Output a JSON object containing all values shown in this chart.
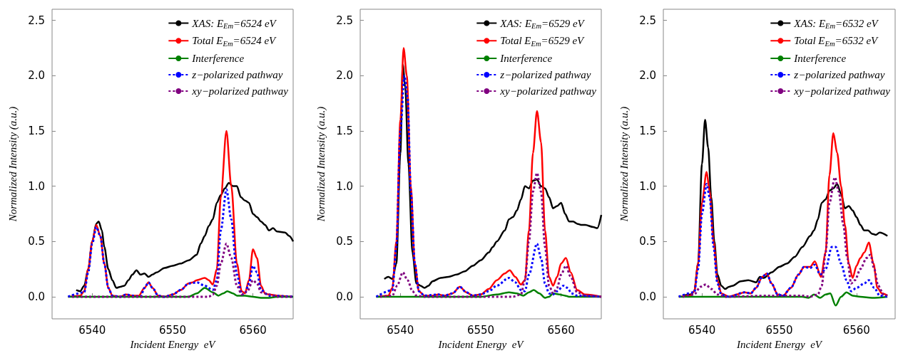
{
  "chart_data": [
    {
      "type": "line",
      "xlabel": "Incident Energy  eV",
      "ylabel": "Normalized Intensity (a.u.)",
      "xlim": [
        6535,
        6565
      ],
      "ylim": [
        -0.2,
        2.6
      ],
      "xticks": [
        6540,
        6550,
        6560
      ],
      "yticks": [
        {
          "value": 0,
          "label": "0.0"
        },
        0.5,
        {
          "value": 1,
          "label": "1.0"
        },
        1.5,
        {
          "value": 2,
          "label": "2.0"
        },
        2.5
      ],
      "legend": "top right",
      "series": [
        {
          "name": "XAS: E$_{Em}$=6524 eV",
          "color": "#000000",
          "line_style": "solid",
          "x": [
            6538,
            6538.5,
            6539,
            6539.5,
            6540,
            6540.5,
            6540.8,
            6541.2,
            6541.5,
            6542,
            6542.5,
            6543,
            6543.5,
            6544,
            6544.5,
            6545,
            6545.5,
            6546,
            6546.5,
            6547,
            6547.5,
            6548,
            6549,
            6550,
            6551,
            6552,
            6553,
            6553.5,
            6554,
            6554.5,
            6555,
            6555.5,
            6556,
            6556.5,
            6557,
            6557.5,
            6558,
            6558.5,
            6559,
            6559.5,
            6560,
            6560.5,
            6561,
            6561.5,
            6562,
            6562.5,
            6563,
            6564,
            6564.5,
            6565
          ],
          "values": [
            0.06,
            0.05,
            0.1,
            0.25,
            0.5,
            0.66,
            0.68,
            0.6,
            0.45,
            0.25,
            0.15,
            0.08,
            0.09,
            0.1,
            0.15,
            0.2,
            0.24,
            0.2,
            0.21,
            0.18,
            0.2,
            0.22,
            0.26,
            0.28,
            0.3,
            0.33,
            0.38,
            0.48,
            0.55,
            0.64,
            0.7,
            0.85,
            0.92,
            0.98,
            1.03,
            1.0,
            1.0,
            0.9,
            0.87,
            0.85,
            0.75,
            0.72,
            0.68,
            0.65,
            0.6,
            0.62,
            0.59,
            0.58,
            0.55,
            0.5
          ]
        },
        {
          "name": "Total E$_{Em}$=6524 eV",
          "color": "#ff0000",
          "line_style": "solid",
          "x": [
            6537,
            6538.5,
            6539,
            6539.5,
            6540,
            6540.5,
            6541,
            6541.5,
            6542,
            6542.5,
            6543.5,
            6544.2,
            6545,
            6545.8,
            6546.5,
            6547,
            6547.5,
            6548.2,
            6549,
            6550,
            6551,
            6552,
            6552.5,
            6553,
            6554,
            6554.5,
            6555,
            6555.5,
            6556,
            6556.7,
            6557.3,
            6558,
            6558.6,
            6559,
            6559.5,
            6560,
            6560.5,
            6561,
            6561.5,
            6562,
            6563,
            6565
          ],
          "values": [
            0,
            0.01,
            0.05,
            0.25,
            0.5,
            0.65,
            0.55,
            0.3,
            0.08,
            0.01,
            0,
            0.02,
            0.01,
            0.01,
            0.08,
            0.13,
            0.08,
            0.01,
            0,
            0.02,
            0.06,
            0.12,
            0.13,
            0.15,
            0.17,
            0.15,
            0.11,
            0.25,
            0.9,
            1.5,
            1.0,
            0.3,
            0.05,
            0.03,
            0.15,
            0.43,
            0.35,
            0.1,
            0.03,
            0.02,
            0.01,
            0
          ]
        },
        {
          "name": "Interference",
          "color": "#008000",
          "line_style": "solid",
          "x": [
            6537,
            6552,
            6553,
            6554,
            6555,
            6555.7,
            6556.3,
            6556.8,
            6557.5,
            6558,
            6559,
            6560,
            6561,
            6562,
            6563,
            6565
          ],
          "values": [
            0,
            0,
            0.03,
            0.08,
            0.04,
            0.01,
            0.03,
            0.05,
            0.03,
            0.01,
            0.01,
            0,
            -0.01,
            -0.01,
            0,
            0
          ]
        },
        {
          "name": "z−polarized pathway",
          "color": "#0000ff",
          "line_style": "dotted",
          "x": [
            6537,
            6539,
            6539.5,
            6540,
            6540.5,
            6541,
            6541.5,
            6542,
            6542.5,
            6543.5,
            6544.2,
            6545,
            6546,
            6546.5,
            6547,
            6547.5,
            6548.2,
            6549,
            6550,
            6551,
            6552,
            6553,
            6554,
            6555,
            6555.5,
            6556,
            6556.7,
            6557.3,
            6558,
            6558.6,
            6559,
            6559.5,
            6560,
            6560.5,
            6561,
            6562,
            6565
          ],
          "values": [
            0,
            0.04,
            0.22,
            0.48,
            0.63,
            0.55,
            0.3,
            0.08,
            0.01,
            0,
            0.02,
            0.01,
            0,
            0.08,
            0.13,
            0.08,
            0.01,
            0,
            0.02,
            0.06,
            0.12,
            0.13,
            0.1,
            0.06,
            0.15,
            0.6,
            0.97,
            0.7,
            0.2,
            0.02,
            0.03,
            0.12,
            0.28,
            0.22,
            0.06,
            0.01,
            0
          ]
        },
        {
          "name": "xy−polarized pathway",
          "color": "#800080",
          "line_style": "dotted",
          "x": [
            6537.5,
            6554.5,
            6555,
            6555.5,
            6556,
            6556.7,
            6557.3,
            6558,
            6558.6,
            6559.3,
            6560,
            6560.5,
            6561,
            6562,
            6563,
            6565
          ],
          "values": [
            0,
            0,
            0.02,
            0.1,
            0.3,
            0.48,
            0.35,
            0.1,
            0.02,
            0.05,
            0.15,
            0.12,
            0.04,
            0.02,
            0,
            0
          ]
        }
      ]
    },
    {
      "type": "line",
      "xlabel": "Incident Energy  eV",
      "ylabel": "Normalized Intensity (a.u.)",
      "xlim": [
        6535,
        6565
      ],
      "ylim": [
        -0.2,
        2.6
      ],
      "xticks": [
        6540,
        6550,
        6560
      ],
      "yticks": [
        {
          "value": 0,
          "label": "0.0"
        },
        0.5,
        {
          "value": 1,
          "label": "1.0"
        },
        1.5,
        {
          "value": 2,
          "label": "2.0"
        },
        2.5
      ],
      "legend": "top right",
      "series": [
        {
          "name": "XAS: E$_{Em}$=6529 eV",
          "color": "#000000",
          "line_style": "solid",
          "x": [
            6538,
            6538.5,
            6539,
            6539.5,
            6540,
            6540.3,
            6540.6,
            6541,
            6541.5,
            6542,
            6542.5,
            6543,
            6543.5,
            6544,
            6545,
            6546,
            6547,
            6548,
            6549,
            6550,
            6551,
            6551.5,
            6552,
            6553,
            6553.5,
            6554,
            6554.5,
            6555,
            6555.5,
            6556,
            6556.5,
            6557,
            6557.5,
            6558,
            6558.5,
            6559,
            6559.5,
            6560,
            6560.5,
            6561,
            6561.5,
            6562,
            6562.5,
            6563,
            6564,
            6564.5,
            6565
          ],
          "values": [
            0.16,
            0.18,
            0.16,
            0.3,
            1.3,
            2.1,
            1.9,
            1.2,
            0.4,
            0.12,
            0.1,
            0.08,
            0.1,
            0.14,
            0.17,
            0.18,
            0.2,
            0.23,
            0.28,
            0.33,
            0.4,
            0.45,
            0.5,
            0.6,
            0.7,
            0.72,
            0.78,
            0.88,
            1.0,
            0.98,
            1.05,
            1.06,
            1.0,
            0.98,
            0.9,
            0.8,
            0.82,
            0.85,
            0.75,
            0.68,
            0.68,
            0.66,
            0.65,
            0.65,
            0.63,
            0.62,
            0.74
          ]
        },
        {
          "name": "Total E$_{Em}$=6529 eV",
          "color": "#ff0000",
          "line_style": "solid",
          "x": [
            6537,
            6538.5,
            6539,
            6539.5,
            6540,
            6540.4,
            6540.8,
            6541.3,
            6541.8,
            6542.3,
            6543,
            6544,
            6544.7,
            6545.5,
            6546.5,
            6547.4,
            6548.2,
            6549,
            6550,
            6551,
            6552,
            6553,
            6553.6,
            6554.3,
            6555,
            6555.5,
            6556,
            6556.5,
            6557,
            6557.5,
            6558,
            6558.5,
            6559,
            6559.5,
            6560,
            6560.6,
            6561.2,
            6562,
            6563,
            6565
          ],
          "values": [
            0,
            0.01,
            0.08,
            0.5,
            1.6,
            2.25,
            2.0,
            1.0,
            0.3,
            0.05,
            0.01,
            0.01,
            0.02,
            0.01,
            0.03,
            0.09,
            0.04,
            0.01,
            0.02,
            0.07,
            0.15,
            0.21,
            0.24,
            0.18,
            0.11,
            0.15,
            0.6,
            1.3,
            1.68,
            1.4,
            0.6,
            0.18,
            0.1,
            0.18,
            0.3,
            0.35,
            0.22,
            0.06,
            0.02,
            0
          ]
        },
        {
          "name": "Interference",
          "color": "#008000",
          "line_style": "solid",
          "x": [
            6537,
            6550,
            6552,
            6553.5,
            6554.5,
            6555.3,
            6556,
            6556.6,
            6557.3,
            6558,
            6558.5,
            6559,
            6559.8,
            6560.5,
            6561,
            6565
          ],
          "values": [
            0,
            0,
            0.02,
            0.04,
            0.03,
            0.01,
            0.04,
            0.06,
            0.03,
            -0.01,
            0,
            0.03,
            0.02,
            0.01,
            0,
            0
          ]
        },
        {
          "name": "z−polarized pathway",
          "color": "#0000ff",
          "line_style": "dotted",
          "x": [
            6537,
            6539,
            6539.5,
            6540,
            6540.5,
            6540.9,
            6541.3,
            6541.8,
            6542.3,
            6543,
            6544.7,
            6545.5,
            6546.5,
            6547.4,
            6548.2,
            6549,
            6550,
            6551,
            6552,
            6553.5,
            6554.3,
            6555,
            6555.5,
            6556,
            6557,
            6557.5,
            6558,
            6558.5,
            6559,
            6559.5,
            6560.3,
            6560.8,
            6561.3,
            6562,
            6565
          ],
          "values": [
            0,
            0.06,
            0.45,
            1.5,
            2.0,
            1.8,
            0.95,
            0.3,
            0.05,
            0.01,
            0.02,
            0.01,
            0.03,
            0.09,
            0.04,
            0.01,
            0.02,
            0.05,
            0.1,
            0.17,
            0.13,
            0.06,
            0.05,
            0.2,
            0.48,
            0.35,
            0.12,
            0.03,
            0.02,
            0.05,
            0.1,
            0.08,
            0.03,
            0.01,
            0
          ]
        },
        {
          "name": "xy−polarized pathway",
          "color": "#800080",
          "line_style": "dotted",
          "x": [
            6537.5,
            6539,
            6539.6,
            6540.3,
            6540.9,
            6541.5,
            6542,
            6543,
            6554,
            6555,
            6555.5,
            6556,
            6556.5,
            6557,
            6557.5,
            6558,
            6558.5,
            6559,
            6559.5,
            6560,
            6560.6,
            6561.2,
            6562,
            6563,
            6565
          ],
          "values": [
            0,
            0.01,
            0.1,
            0.22,
            0.15,
            0.05,
            0.01,
            0,
            0,
            0.02,
            0.15,
            0.5,
            0.95,
            1.12,
            0.95,
            0.45,
            0.1,
            0.03,
            0.08,
            0.2,
            0.28,
            0.18,
            0.04,
            0.01,
            0
          ]
        }
      ]
    },
    {
      "type": "line",
      "xlabel": "Incident Energy  eV",
      "ylabel": "Normalized Intensity (a.u.)",
      "xlim": [
        6535,
        6565
      ],
      "ylim": [
        -0.2,
        2.6
      ],
      "xticks": [
        6540,
        6550,
        6560
      ],
      "yticks": [
        {
          "value": 0,
          "label": "0.0"
        },
        0.5,
        {
          "value": 1,
          "label": "1.0"
        },
        1.5,
        {
          "value": 2,
          "label": "2.0"
        },
        2.5
      ],
      "legend": "top right",
      "series": [
        {
          "name": "XAS: E$_{Em}$=6532 eV",
          "color": "#000000",
          "line_style": "solid",
          "x": [
            6537.5,
            6538.5,
            6539,
            6539.5,
            6540,
            6540.4,
            6540.8,
            6541.2,
            6541.6,
            6542,
            6542.5,
            6543,
            6543.5,
            6544,
            6545,
            6546,
            6547,
            6547.5,
            6548,
            6549,
            6550,
            6551,
            6552,
            6553,
            6554,
            6554.5,
            6555,
            6555.5,
            6556,
            6556.5,
            6557,
            6557.5,
            6558,
            6558.5,
            6559,
            6559.5,
            6560,
            6560.5,
            6561,
            6561.5,
            6562,
            6562.5,
            6563,
            6564
          ],
          "values": [
            0.01,
            0.02,
            0.05,
            0.3,
            1.2,
            1.6,
            1.35,
            0.9,
            0.5,
            0.2,
            0.1,
            0.07,
            0.09,
            0.1,
            0.14,
            0.15,
            0.13,
            0.18,
            0.17,
            0.22,
            0.27,
            0.3,
            0.36,
            0.45,
            0.55,
            0.6,
            0.7,
            0.85,
            0.88,
            0.96,
            0.98,
            1.02,
            0.93,
            0.8,
            0.82,
            0.78,
            0.72,
            0.65,
            0.6,
            0.6,
            0.57,
            0.56,
            0.58,
            0.55
          ]
        },
        {
          "name": "Total E$_{Em}$=6532 eV",
          "color": "#ff0000",
          "line_style": "solid",
          "x": [
            6537,
            6538.5,
            6539,
            6539.5,
            6540,
            6540.6,
            6541,
            6541.5,
            6542,
            6542.5,
            6543.5,
            6544.5,
            6545.5,
            6546.3,
            6547,
            6547.8,
            6548.4,
            6549,
            6549.8,
            6550.5,
            6551.5,
            6552.5,
            6553.2,
            6554,
            6554.6,
            6555.4,
            6556,
            6556.5,
            6557,
            6557.5,
            6558,
            6558.5,
            6559,
            6559.5,
            6560,
            6560.5,
            6561,
            6561.6,
            6562.2,
            6562.7,
            6563.3,
            6564
          ],
          "values": [
            0,
            0.01,
            0.05,
            0.3,
            0.85,
            1.13,
            0.95,
            0.5,
            0.15,
            0.03,
            0,
            0.02,
            0.04,
            0.03,
            0.08,
            0.18,
            0.21,
            0.12,
            0.02,
            0.01,
            0.08,
            0.2,
            0.27,
            0.27,
            0.32,
            0.18,
            0.4,
            1.1,
            1.48,
            1.3,
            1.0,
            0.65,
            0.3,
            0.17,
            0.28,
            0.35,
            0.4,
            0.49,
            0.3,
            0.08,
            0.03,
            0.01
          ]
        },
        {
          "name": "Interference",
          "color": "#008000",
          "line_style": "solid",
          "x": [
            6537,
            6553,
            6553.8,
            6554.5,
            6555.3,
            6556,
            6556.6,
            6557.3,
            6558,
            6558.7,
            6559.5,
            6560.5,
            6562,
            6564
          ],
          "values": [
            0,
            0,
            -0.01,
            0.02,
            -0.01,
            0.02,
            0.03,
            -0.08,
            0,
            0.04,
            0.01,
            0,
            -0.01,
            0
          ]
        },
        {
          "name": "z−polarized pathway",
          "color": "#0000ff",
          "line_style": "dotted",
          "x": [
            6537,
            6539,
            6539.5,
            6540,
            6540.6,
            6541,
            6541.5,
            6542,
            6542.5,
            6543.5,
            6545.5,
            6546.3,
            6547,
            6547.8,
            6548.4,
            6549,
            6549.8,
            6550.5,
            6551.5,
            6552.5,
            6553.2,
            6554,
            6554.6,
            6555.3,
            6556,
            6556.8,
            6557.3,
            6558,
            6558.7,
            6559.3,
            6560,
            6561,
            6561.6,
            6562.3,
            6563,
            6564
          ],
          "values": [
            0,
            0.04,
            0.25,
            0.75,
            1.02,
            0.9,
            0.45,
            0.12,
            0.02,
            0,
            0.04,
            0.03,
            0.08,
            0.18,
            0.21,
            0.12,
            0.02,
            0.01,
            0.08,
            0.2,
            0.27,
            0.26,
            0.29,
            0.2,
            0.25,
            0.45,
            0.45,
            0.3,
            0.15,
            0.05,
            0.08,
            0.12,
            0.15,
            0.08,
            0.01,
            0
          ]
        },
        {
          "name": "xy−polarized pathway",
          "color": "#800080",
          "line_style": "dotted",
          "x": [
            6537.5,
            6539,
            6539.8,
            6540.5,
            6541.2,
            6542,
            6543,
            6549,
            6551,
            6553,
            6554,
            6555,
            6555.5,
            6556,
            6556.5,
            6557.2,
            6557.7,
            6558.3,
            6558.8,
            6559.3,
            6559.8,
            6560.5,
            6561.3,
            6561.8,
            6562.3,
            6562.8,
            6563.5,
            6564
          ],
          "values": [
            0,
            0.02,
            0.09,
            0.11,
            0.07,
            0.02,
            0,
            0.01,
            0.01,
            0.01,
            0,
            0.02,
            0.1,
            0.4,
            0.85,
            1.08,
            0.95,
            0.65,
            0.35,
            0.12,
            0.15,
            0.25,
            0.35,
            0.38,
            0.25,
            0.1,
            0.02,
            0.01
          ]
        }
      ]
    }
  ]
}
